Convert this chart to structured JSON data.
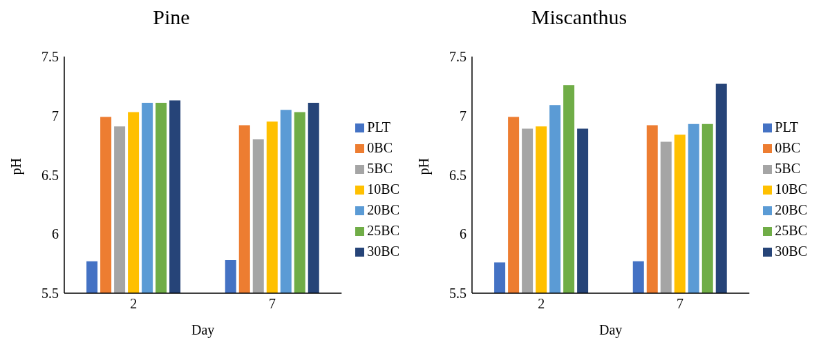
{
  "chart_data": [
    {
      "type": "bar",
      "title": "Pine",
      "xlabel": "Day",
      "ylabel": "pH",
      "categories": [
        "2",
        "7"
      ],
      "ylim": [
        5.5,
        7.5
      ],
      "yticks": [
        5.5,
        6,
        6.5,
        7,
        7.5
      ],
      "grid": false,
      "legend": "right",
      "series": [
        {
          "name": "PLT",
          "color": "#4472c4",
          "values": [
            5.77,
            5.78
          ]
        },
        {
          "name": "0BC",
          "color": "#ed7d31",
          "values": [
            6.99,
            6.92
          ]
        },
        {
          "name": "5BC",
          "color": "#a5a5a5",
          "values": [
            6.91,
            6.8
          ]
        },
        {
          "name": "10BC",
          "color": "#ffc000",
          "values": [
            7.03,
            6.95
          ]
        },
        {
          "name": "20BC",
          "color": "#5b9bd5",
          "values": [
            7.11,
            7.05
          ]
        },
        {
          "name": "25BC",
          "color": "#70ad47",
          "values": [
            7.11,
            7.03
          ]
        },
        {
          "name": "30BC",
          "color": "#264478",
          "values": [
            7.13,
            7.11
          ]
        }
      ]
    },
    {
      "type": "bar",
      "title": "Miscanthus",
      "xlabel": "Day",
      "ylabel": "pH",
      "categories": [
        "2",
        "7"
      ],
      "ylim": [
        5.5,
        7.5
      ],
      "yticks": [
        5.5,
        6,
        6.5,
        7,
        7.5
      ],
      "grid": false,
      "legend": "right",
      "series": [
        {
          "name": "PLT",
          "color": "#4472c4",
          "values": [
            5.76,
            5.77
          ]
        },
        {
          "name": "0BC",
          "color": "#ed7d31",
          "values": [
            6.99,
            6.92
          ]
        },
        {
          "name": "5BC",
          "color": "#a5a5a5",
          "values": [
            6.89,
            6.78
          ]
        },
        {
          "name": "10BC",
          "color": "#ffc000",
          "values": [
            6.91,
            6.84
          ]
        },
        {
          "name": "20BC",
          "color": "#5b9bd5",
          "values": [
            7.09,
            6.93
          ]
        },
        {
          "name": "25BC",
          "color": "#70ad47",
          "values": [
            7.26,
            6.93
          ]
        },
        {
          "name": "30BC",
          "color": "#264478",
          "values": [
            6.89,
            7.27
          ]
        }
      ]
    }
  ]
}
